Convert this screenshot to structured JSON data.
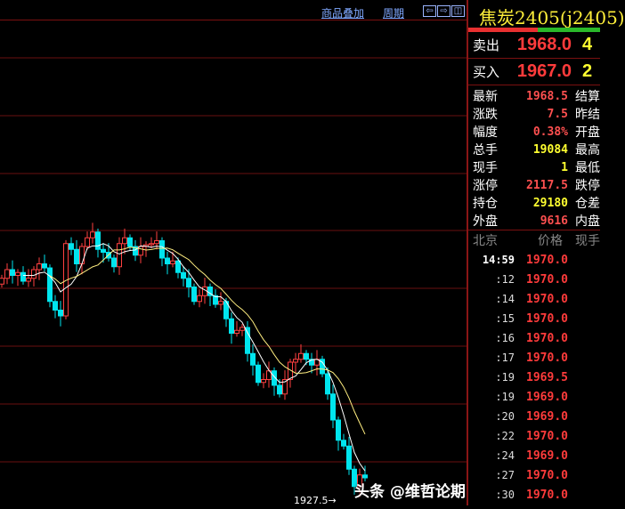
{
  "toolbar": {
    "overlay_label": "商品叠加",
    "period_label": "周期",
    "icons": [
      "arrow-left-icon",
      "arrow-right-icon",
      "panel-toggle-icon"
    ]
  },
  "chart": {
    "low_marker": "1927.5→",
    "colors": {
      "up": "#ff4040",
      "down": "#00e5ee",
      "ma_short": "#ffffff",
      "ma_long": "#ffee80",
      "grid": "#6a1010"
    },
    "closes": [
      1966,
      1967.5,
      1966.5,
      1967,
      1965.5,
      1966,
      1967.5,
      1968.5,
      1967.8,
      1962,
      1960.5,
      1959.5,
      1972,
      1971,
      1968.5,
      1971.5,
      1973,
      1974,
      1971,
      1970.5,
      1969.5,
      1968,
      1972,
      1973,
      1971.5,
      1970,
      1971.5,
      1971.8,
      1972,
      1972.5,
      1969.5,
      1968.5,
      1969,
      1967,
      1966,
      1964.5,
      1962,
      1963,
      1964.5,
      1963,
      1961.5,
      1962,
      1959,
      1956.5,
      1957,
      1957.5,
      1953,
      1951,
      1948,
      1948.5,
      1950,
      1947.5,
      1946,
      1948.5,
      1951.5,
      1952,
      1953,
      1952,
      1951,
      1952,
      1949.5,
      1946,
      1941.5,
      1938,
      1937,
      1933,
      1930,
      1932,
      1931.5
    ],
    "first_open": 1965
  },
  "quote": {
    "title": "焦炭2405(j2405)",
    "sell_label": "卖出",
    "sell_price": "1968.0",
    "sell_vol": "4",
    "buy_label": "买入",
    "buy_price": "1967.0",
    "buy_vol": "2",
    "stats": [
      {
        "label": "最新",
        "value": "1968.5",
        "color": "#ff5050",
        "right": "结算"
      },
      {
        "label": "涨跌",
        "value": "7.5",
        "color": "#ff5050",
        "right": "昨结"
      },
      {
        "label": "幅度",
        "value": "0.38%",
        "color": "#ff5050",
        "right": "开盘"
      },
      {
        "label": "总手",
        "value": "19084",
        "color": "#ffff30",
        "right": "最高"
      },
      {
        "label": "现手",
        "value": "1",
        "color": "#ffff30",
        "right": "最低"
      },
      {
        "label": "涨停",
        "value": "2117.5",
        "color": "#ff5050",
        "right": "跌停"
      },
      {
        "label": "持仓",
        "value": "29180",
        "color": "#ffff30",
        "right": "仓差"
      },
      {
        "label": "外盘",
        "value": "9616",
        "color": "#ff5050",
        "right": "内盘"
      }
    ]
  },
  "ticks": {
    "headers": [
      "北京",
      "价格",
      "现手"
    ],
    "rows": [
      {
        "t": "14:59",
        "p": "1970.0"
      },
      {
        "t": ":12",
        "p": "1970.0"
      },
      {
        "t": ":14",
        "p": "1970.0"
      },
      {
        "t": ":15",
        "p": "1970.0"
      },
      {
        "t": ":16",
        "p": "1970.0"
      },
      {
        "t": ":17",
        "p": "1970.0"
      },
      {
        "t": ":19",
        "p": "1969.5"
      },
      {
        "t": ":19",
        "p": "1969.0"
      },
      {
        "t": ":20",
        "p": "1969.0"
      },
      {
        "t": ":22",
        "p": "1970.0"
      },
      {
        "t": ":24",
        "p": "1969.0"
      },
      {
        "t": ":27",
        "p": "1970.0"
      },
      {
        "t": ":30",
        "p": "1970.0"
      }
    ]
  },
  "watermark": "头条 @维哲论期"
}
